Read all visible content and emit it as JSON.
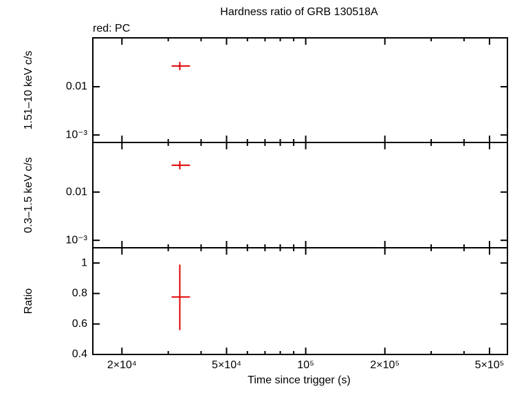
{
  "chart_data": [
    {
      "type": "scatter",
      "title": "Hardness ratio of GRB 130518A",
      "annotation": "red: PC",
      "ylabel": "1.51–10 keV c/s",
      "yscale": "log",
      "ylim": [
        0.0007,
        0.103
      ],
      "yticks": [
        {
          "value": 0.001,
          "label": "10⁻³"
        },
        0.01
      ],
      "series": [
        {
          "color": "#e00000",
          "x": [
            33200
          ],
          "xerr": [
            [
              2300,
              3100
            ]
          ],
          "values": [
            0.0269
          ]
        }
      ]
    },
    {
      "type": "scatter",
      "ylabel": "0.3–1.5 keV c/s",
      "yscale": "log",
      "ylim": [
        0.0007,
        0.107
      ],
      "yticks": [
        {
          "value": 0.001,
          "label": "10⁻³"
        },
        0.01
      ],
      "series": [
        {
          "color": "#e00000",
          "x": [
            33200
          ],
          "xerr": [
            [
              2300,
              3100
            ]
          ],
          "values": [
            0.036
          ]
        }
      ]
    },
    {
      "type": "scatter",
      "ylabel": "Ratio",
      "yscale": "linear",
      "ylim": [
        0.4,
        1.1
      ],
      "yticks": [
        0.4,
        0.6,
        0.8,
        1
      ],
      "xlabel": "Time since trigger (s)",
      "xscale": "log",
      "xlim": [
        15500,
        585000
      ],
      "xticks": [
        {
          "value": 20000,
          "label": "2×10⁴"
        },
        {
          "value": 50000,
          "label": "5×10⁴"
        },
        {
          "value": 100000,
          "label": "10⁵"
        },
        {
          "value": 200000,
          "label": "2×10⁵"
        },
        {
          "value": 500000,
          "label": "5×10⁵"
        }
      ],
      "xminor": [
        30000,
        40000,
        60000,
        70000,
        80000,
        90000,
        300000,
        400000
      ],
      "series": [
        {
          "color": "#e00000",
          "x": [
            33200
          ],
          "xerr": [
            [
              2300,
              3100
            ]
          ],
          "values": [
            0.777
          ],
          "yerr": [
            [
              0.217,
              0.213
            ]
          ]
        }
      ]
    }
  ]
}
